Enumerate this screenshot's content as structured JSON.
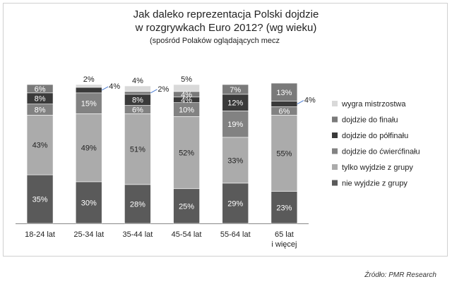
{
  "chart_data": {
    "type": "bar",
    "stacked": true,
    "title": "Jak daleko reprezentacja Polski dojdzie",
    "title_line2": "w rozgrywkach Euro 2012? (wg wieku)",
    "subtitle": "(spośród Polaków oglądających mecz",
    "categories": [
      "18-24 lat",
      "25-34 lat",
      "35-44 lat",
      "45-54 lat",
      "55-64 lat",
      "65 lat\ni więcej"
    ],
    "ylim": [
      0,
      100
    ],
    "series": [
      {
        "name": "nie wyjdzie z grupy",
        "color": "#5a5a5a",
        "values": [
          35,
          30,
          28,
          25,
          29,
          23
        ],
        "labels": [
          "35%",
          "30%",
          "28%",
          "25%",
          "29%",
          "23%"
        ]
      },
      {
        "name": "tylko wyjdzie z grupy",
        "color": "#ababab",
        "values": [
          43,
          49,
          51,
          52,
          33,
          55
        ],
        "labels": [
          "43%",
          "49%",
          "51%",
          "52%",
          "33%",
          "55%"
        ]
      },
      {
        "name": "dojdzie do ćwierćfinału",
        "color": "#828282",
        "values": [
          8,
          15,
          6,
          10,
          19,
          6
        ],
        "labels": [
          "8%",
          "15%",
          "6%",
          "10%",
          "19%",
          "6%"
        ]
      },
      {
        "name": "dojdzie do półfinału",
        "color": "#3a3a3a",
        "values": [
          8,
          4,
          8,
          4,
          12,
          4
        ],
        "labels": [
          "8%",
          "4%",
          "8%",
          "4%",
          "12%",
          "4%"
        ]
      },
      {
        "name": "dojdzie do finału",
        "color": "#7a7a7a",
        "values": [
          6,
          0,
          2,
          4,
          7,
          13
        ],
        "labels": [
          "6%",
          "",
          "2%",
          "4%",
          "7%",
          "13%"
        ]
      },
      {
        "name": "wygra mistrzostwa",
        "color": "#d9d9d9",
        "values": [
          0,
          2,
          4,
          5,
          0,
          0
        ],
        "labels": [
          "",
          "2%",
          "4%",
          "5%",
          "",
          ""
        ]
      }
    ],
    "legend_order": [
      "wygra mistrzostwa",
      "dojdzie do finału",
      "dojdzie do półfinału",
      "dojdzie do ćwierćfinału",
      "tylko wyjdzie z grupy",
      "nie wyjdzie z grupy"
    ],
    "legend_position": "right",
    "source": "Źródło: PMR Research"
  }
}
